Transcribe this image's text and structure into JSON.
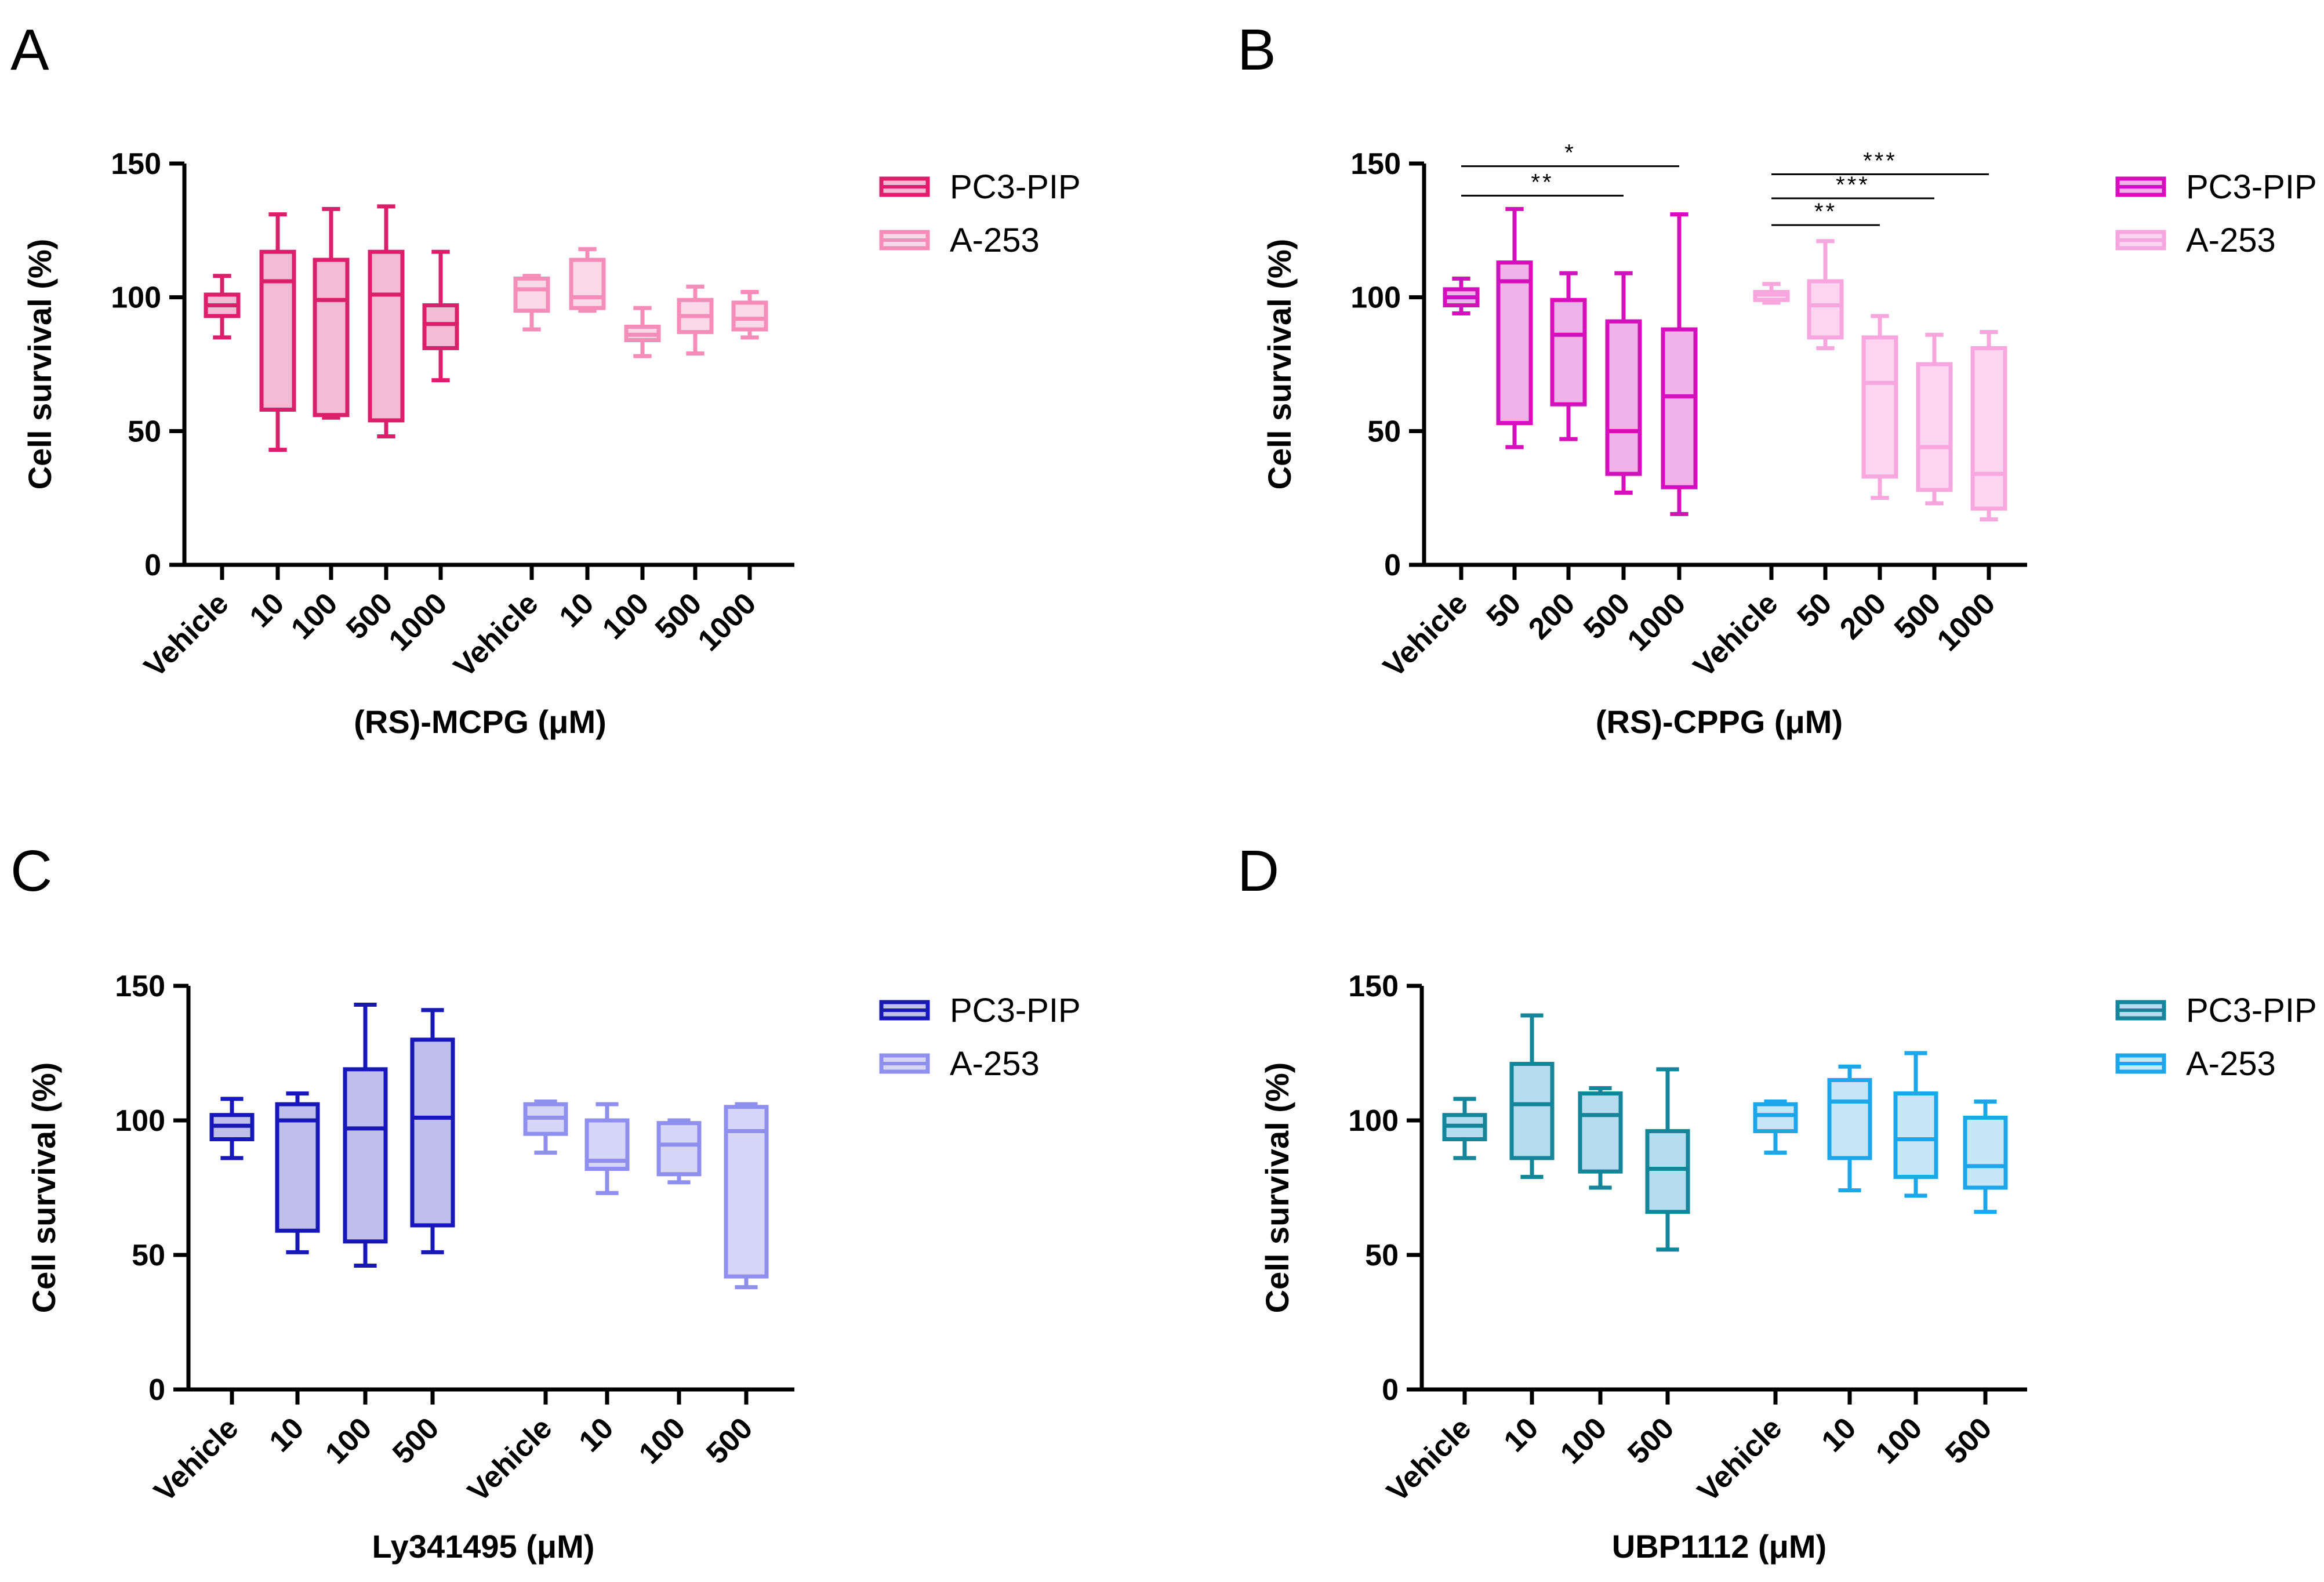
{
  "figure": {
    "panels": [
      {
        "letter": "A",
        "legend": [
          {
            "label": "PC3-PIP",
            "stroke": "#dc1f6b",
            "fill": "#f6bbd4"
          },
          {
            "label": "A-253",
            "stroke": "#f68db9",
            "fill": "#fcd9e8"
          }
        ]
      },
      {
        "letter": "B",
        "legend": [
          {
            "label": "PC3-PIP",
            "stroke": "#d40fbb",
            "fill": "#f1b2e9"
          },
          {
            "label": "A-253",
            "stroke": "#f8a6de",
            "fill": "#fcd6f1"
          }
        ]
      },
      {
        "letter": "C",
        "legend": [
          {
            "label": "PC3-PIP",
            "stroke": "#1718b7",
            "fill": "#bfbfee"
          },
          {
            "label": "A-253",
            "stroke": "#8f8ff0",
            "fill": "#d6d6f8"
          }
        ]
      },
      {
        "letter": "D",
        "legend": [
          {
            "label": "PC3-PIP",
            "stroke": "#15859a",
            "fill": "#b5dcef"
          },
          {
            "label": "A-253",
            "stroke": "#1da7ea",
            "fill": "#c7e7f8"
          }
        ]
      }
    ]
  },
  "chart_data": [
    {
      "panel": "A",
      "type": "box",
      "xlabel": "(RS)-MCPG (μM)",
      "ylabel": "Cell survival (%)",
      "ylim": [
        0,
        150
      ],
      "yticks": [
        0,
        50,
        100,
        150
      ],
      "categories": [
        "Vehicle",
        "10",
        "100",
        "500",
        "1000"
      ],
      "series": [
        {
          "name": "PC3-PIP",
          "boxes": [
            {
              "category": "Vehicle",
              "min": 85,
              "q1": 93,
              "median": 97,
              "q3": 101,
              "max": 108
            },
            {
              "category": "10",
              "min": 43,
              "q1": 58,
              "median": 106,
              "q3": 117,
              "max": 131
            },
            {
              "category": "100",
              "min": 55,
              "q1": 56,
              "median": 99,
              "q3": 114,
              "max": 133
            },
            {
              "category": "500",
              "min": 48,
              "q1": 54,
              "median": 101,
              "q3": 117,
              "max": 134
            },
            {
              "category": "1000",
              "min": 69,
              "q1": 81,
              "median": 90,
              "q3": 97,
              "max": 117
            }
          ]
        },
        {
          "name": "A-253",
          "boxes": [
            {
              "category": "Vehicle",
              "min": 88,
              "q1": 95,
              "median": 103,
              "q3": 107,
              "max": 108
            },
            {
              "category": "10",
              "min": 95,
              "q1": 96,
              "median": 100,
              "q3": 114,
              "max": 118
            },
            {
              "category": "100",
              "min": 78,
              "q1": 84,
              "median": 86,
              "q3": 89,
              "max": 96
            },
            {
              "category": "500",
              "min": 79,
              "q1": 87,
              "median": 93,
              "q3": 99,
              "max": 104
            },
            {
              "category": "1000",
              "min": 85,
              "q1": 88,
              "median": 92,
              "q3": 98,
              "max": 102
            }
          ]
        }
      ],
      "significance": []
    },
    {
      "panel": "B",
      "type": "box",
      "xlabel": "(RS)-CPPG (μM)",
      "ylabel": "Cell survival (%)",
      "ylim": [
        0,
        150
      ],
      "yticks": [
        0,
        50,
        100,
        150
      ],
      "categories": [
        "Vehicle",
        "50",
        "200",
        "500",
        "1000"
      ],
      "series": [
        {
          "name": "PC3-PIP",
          "boxes": [
            {
              "category": "Vehicle",
              "min": 94,
              "q1": 97,
              "median": 100,
              "q3": 103,
              "max": 107
            },
            {
              "category": "50",
              "min": 44,
              "q1": 53,
              "median": 106,
              "q3": 113,
              "max": 133
            },
            {
              "category": "200",
              "min": 47,
              "q1": 60,
              "median": 86,
              "q3": 99,
              "max": 109
            },
            {
              "category": "500",
              "min": 27,
              "q1": 34,
              "median": 50,
              "q3": 91,
              "max": 109
            },
            {
              "category": "1000",
              "min": 19,
              "q1": 29,
              "median": 63,
              "q3": 88,
              "max": 131
            }
          ]
        },
        {
          "name": "A-253",
          "boxes": [
            {
              "category": "Vehicle",
              "min": 98,
              "q1": 99,
              "median": 101,
              "q3": 102,
              "max": 105
            },
            {
              "category": "50",
              "min": 81,
              "q1": 85,
              "median": 97,
              "q3": 106,
              "max": 121
            },
            {
              "category": "200",
              "min": 25,
              "q1": 33,
              "median": 68,
              "q3": 85,
              "max": 93
            },
            {
              "category": "500",
              "min": 23,
              "q1": 28,
              "median": 44,
              "q3": 75,
              "max": 86
            },
            {
              "category": "1000",
              "min": 17,
              "q1": 21,
              "median": 34,
              "q3": 81,
              "max": 87
            }
          ]
        }
      ],
      "significance": [
        {
          "series": "PC3-PIP",
          "from": "Vehicle",
          "to": "1000",
          "y": 149,
          "label": "*"
        },
        {
          "series": "PC3-PIP",
          "from": "Vehicle",
          "to": "500",
          "y": 138,
          "label": "**"
        },
        {
          "series": "A-253",
          "from": "Vehicle",
          "to": "1000",
          "y": 146,
          "label": "***"
        },
        {
          "series": "A-253",
          "from": "Vehicle",
          "to": "500",
          "y": 137,
          "label": "***"
        },
        {
          "series": "A-253",
          "from": "Vehicle",
          "to": "200",
          "y": 127,
          "label": "**"
        }
      ]
    },
    {
      "panel": "C",
      "type": "box",
      "xlabel": "Ly341495 (μM)",
      "ylabel": "Cell survival (%)",
      "ylim": [
        0,
        150
      ],
      "yticks": [
        0,
        50,
        100,
        150
      ],
      "categories": [
        "Vehicle",
        "10",
        "100",
        "500"
      ],
      "series": [
        {
          "name": "PC3-PIP",
          "boxes": [
            {
              "category": "Vehicle",
              "min": 86,
              "q1": 93,
              "median": 98,
              "q3": 102,
              "max": 108
            },
            {
              "category": "10",
              "min": 51,
              "q1": 59,
              "median": 100,
              "q3": 106,
              "max": 110
            },
            {
              "category": "100",
              "min": 46,
              "q1": 55,
              "median": 97,
              "q3": 119,
              "max": 143
            },
            {
              "category": "500",
              "min": 51,
              "q1": 61,
              "median": 101,
              "q3": 130,
              "max": 141
            }
          ]
        },
        {
          "name": "A-253",
          "boxes": [
            {
              "category": "Vehicle",
              "min": 88,
              "q1": 95,
              "median": 101,
              "q3": 106,
              "max": 107
            },
            {
              "category": "10",
              "min": 73,
              "q1": 82,
              "median": 85,
              "q3": 100,
              "max": 106
            },
            {
              "category": "100",
              "min": 77,
              "q1": 80,
              "median": 91,
              "q3": 99,
              "max": 100
            },
            {
              "category": "500",
              "min": 38,
              "q1": 42,
              "median": 96,
              "q3": 105,
              "max": 106
            }
          ]
        }
      ],
      "significance": []
    },
    {
      "panel": "D",
      "type": "box",
      "xlabel": "UBP1112 (μM)",
      "ylabel": "Cell survival (%)",
      "ylim": [
        0,
        150
      ],
      "yticks": [
        0,
        50,
        100,
        150
      ],
      "categories": [
        "Vehicle",
        "10",
        "100",
        "500"
      ],
      "series": [
        {
          "name": "PC3-PIP",
          "boxes": [
            {
              "category": "Vehicle",
              "min": 86,
              "q1": 93,
              "median": 98,
              "q3": 102,
              "max": 108
            },
            {
              "category": "10",
              "min": 79,
              "q1": 86,
              "median": 106,
              "q3": 121,
              "max": 139
            },
            {
              "category": "100",
              "min": 75,
              "q1": 81,
              "median": 102,
              "q3": 110,
              "max": 112
            },
            {
              "category": "500",
              "min": 52,
              "q1": 66,
              "median": 82,
              "q3": 96,
              "max": 119
            }
          ]
        },
        {
          "name": "A-253",
          "boxes": [
            {
              "category": "Vehicle",
              "min": 88,
              "q1": 96,
              "median": 102,
              "q3": 106,
              "max": 107
            },
            {
              "category": "10",
              "min": 74,
              "q1": 86,
              "median": 107,
              "q3": 115,
              "max": 120
            },
            {
              "category": "100",
              "min": 72,
              "q1": 79,
              "median": 93,
              "q3": 110,
              "max": 125
            },
            {
              "category": "500",
              "min": 66,
              "q1": 75,
              "median": 83,
              "q3": 101,
              "max": 107
            }
          ]
        }
      ],
      "significance": []
    }
  ]
}
